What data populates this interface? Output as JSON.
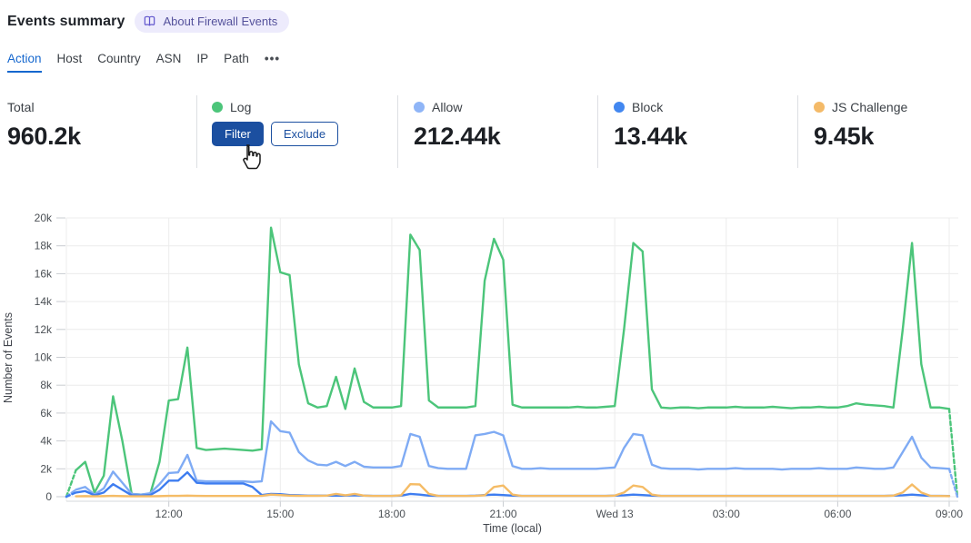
{
  "header": {
    "title": "Events summary",
    "about_badge": {
      "label": "About Firewall Events",
      "icon": "book-icon",
      "bg_color": "#edebfc",
      "text_color": "#55529c",
      "icon_color": "#6156cd"
    }
  },
  "tabs": {
    "items": [
      "Action",
      "Host",
      "Country",
      "ASN",
      "IP",
      "Path"
    ],
    "active": "Action",
    "more": "•••",
    "more_icon": "ellipsis-icon",
    "active_color": "#1567ce"
  },
  "stats": {
    "cards": [
      {
        "label": "Total",
        "value": "960.2k"
      },
      {
        "label": "Log",
        "dot_color": "#4cc57a",
        "hovered": true,
        "actions": {
          "filter": "Filter",
          "exclude": "Exclude"
        },
        "button_color": "#1b4fa0"
      },
      {
        "label": "Allow",
        "dot_color": "#8fb5f7",
        "value": "212.44k"
      },
      {
        "label": "Block",
        "dot_color": "#4287f0",
        "value": "13.44k"
      },
      {
        "label": "JS Challenge",
        "dot_color": "#f4ba68",
        "value": "9.45k"
      }
    ]
  },
  "cursor": {
    "icon": "hand-pointer-cursor"
  },
  "chart_data": {
    "type": "line",
    "title": "",
    "xlabel": "Time (local)",
    "ylabel": "Number of Events",
    "ylim": [
      0,
      20000
    ],
    "grid": true,
    "legend_position": "in stat cards above chart",
    "edge_style": "series enter and exit the window with dashed segments dropping to zero",
    "y_ticks": [
      0,
      2000,
      4000,
      6000,
      8000,
      10000,
      12000,
      14000,
      16000,
      18000,
      20000
    ],
    "y_tick_labels": [
      "0",
      "2k",
      "4k",
      "6k",
      "8k",
      "10k",
      "12k",
      "14k",
      "16k",
      "18k",
      "20k"
    ],
    "x_ticks": [
      {
        "index": 10,
        "label": "12:00"
      },
      {
        "index": 22,
        "label": "15:00"
      },
      {
        "index": 34,
        "label": "18:00"
      },
      {
        "index": 46,
        "label": "21:00"
      },
      {
        "index": 58,
        "label": "Wed 13"
      },
      {
        "index": 70,
        "label": "03:00"
      },
      {
        "index": 82,
        "label": "06:00"
      },
      {
        "index": 94,
        "label": "09:00"
      }
    ],
    "x": [
      "09:30",
      "09:45",
      "10:00",
      "10:15",
      "10:30",
      "10:45",
      "11:00",
      "11:15",
      "11:30",
      "11:45",
      "12:00",
      "12:15",
      "12:30",
      "12:45",
      "13:00",
      "13:15",
      "13:30",
      "13:45",
      "14:00",
      "14:15",
      "14:30",
      "14:45",
      "15:00",
      "15:15",
      "15:30",
      "15:45",
      "16:00",
      "16:15",
      "16:30",
      "16:45",
      "17:00",
      "17:15",
      "17:30",
      "17:45",
      "18:00",
      "18:15",
      "18:30",
      "18:45",
      "19:00",
      "19:15",
      "19:30",
      "19:45",
      "20:00",
      "20:15",
      "20:30",
      "20:45",
      "21:00",
      "21:15",
      "21:30",
      "21:45",
      "22:00",
      "22:15",
      "22:30",
      "22:45",
      "23:00",
      "23:15",
      "23:30",
      "23:45",
      "00:00",
      "00:15",
      "00:30",
      "00:45",
      "01:00",
      "01:15",
      "01:30",
      "01:45",
      "02:00",
      "02:15",
      "02:30",
      "02:45",
      "03:00",
      "03:15",
      "03:30",
      "03:45",
      "04:00",
      "04:15",
      "04:30",
      "04:45",
      "05:00",
      "05:15",
      "05:30",
      "05:45",
      "06:00",
      "06:15",
      "06:30",
      "06:45",
      "07:00",
      "07:15",
      "07:30",
      "07:45",
      "08:00",
      "08:15",
      "08:30",
      "08:45",
      "09:00"
    ],
    "series": [
      {
        "name": "Log",
        "color": "#4cc57a",
        "edge_dash": {
          "lead": true,
          "tail": true
        },
        "values": [
          1900,
          2500,
          300,
          1500,
          7200,
          4000,
          200,
          150,
          200,
          2500,
          6900,
          7000,
          10700,
          3500,
          3350,
          3400,
          3450,
          3400,
          3350,
          3300,
          3400,
          19300,
          16100,
          15900,
          9500,
          6700,
          6400,
          6500,
          8600,
          6300,
          9200,
          6800,
          6400,
          6400,
          6400,
          6500,
          18800,
          17700,
          6900,
          6400,
          6400,
          6400,
          6400,
          6500,
          15500,
          18500,
          17000,
          6600,
          6400,
          6400,
          6400,
          6400,
          6400,
          6400,
          6450,
          6400,
          6400,
          6450,
          6500,
          12000,
          18200,
          17600,
          7700,
          6400,
          6350,
          6400,
          6400,
          6350,
          6400,
          6400,
          6400,
          6450,
          6400,
          6400,
          6400,
          6450,
          6400,
          6350,
          6400,
          6400,
          6450,
          6400,
          6400,
          6500,
          6700,
          6600,
          6550,
          6500,
          6400,
          12000,
          18200,
          9500,
          6400,
          6400,
          6300
        ]
      },
      {
        "name": "Allow",
        "color": "#7fabf4",
        "edge_dash": {
          "lead": true,
          "tail": true
        },
        "values": [
          500,
          700,
          150,
          600,
          1800,
          1000,
          200,
          150,
          250,
          900,
          1700,
          1750,
          3000,
          1150,
          1100,
          1100,
          1100,
          1100,
          1100,
          1050,
          1100,
          5400,
          4700,
          4600,
          3200,
          2600,
          2300,
          2250,
          2500,
          2200,
          2500,
          2150,
          2100,
          2100,
          2100,
          2200,
          4500,
          4300,
          2200,
          2050,
          2000,
          2000,
          2000,
          4400,
          4500,
          4650,
          4400,
          2200,
          2000,
          2000,
          2050,
          2000,
          2000,
          2000,
          2000,
          2000,
          2000,
          2050,
          2100,
          3500,
          4500,
          4400,
          2300,
          2050,
          2000,
          2000,
          2000,
          1950,
          2000,
          2000,
          2000,
          2050,
          2000,
          2000,
          2000,
          2000,
          1950,
          2000,
          2000,
          2000,
          2050,
          2000,
          2000,
          2000,
          2100,
          2050,
          2000,
          2000,
          2100,
          3200,
          4300,
          2800,
          2100,
          2050,
          2000
        ]
      },
      {
        "name": "Block",
        "color": "#3e7df0",
        "edge_dash": {
          "lead": true,
          "tail": false
        },
        "values": [
          300,
          400,
          100,
          300,
          900,
          500,
          100,
          80,
          120,
          500,
          1150,
          1150,
          1750,
          1000,
          950,
          950,
          950,
          950,
          950,
          700,
          120,
          200,
          180,
          120,
          100,
          80,
          80,
          80,
          80,
          80,
          100,
          80,
          60,
          60,
          60,
          80,
          200,
          150,
          80,
          60,
          60,
          60,
          60,
          80,
          120,
          150,
          120,
          80,
          60,
          60,
          60,
          60,
          60,
          60,
          60,
          60,
          60,
          60,
          80,
          100,
          150,
          120,
          80,
          60,
          60,
          60,
          60,
          60,
          60,
          60,
          60,
          60,
          60,
          60,
          60,
          60,
          60,
          60,
          60,
          60,
          60,
          60,
          60,
          60,
          60,
          60,
          60,
          60,
          80,
          100,
          150,
          100,
          60,
          60,
          50
        ]
      },
      {
        "name": "JS Challenge",
        "color": "#f5bc66",
        "edge_dash": {
          "lead": false,
          "tail": false
        },
        "values": [
          30,
          40,
          30,
          40,
          60,
          40,
          30,
          30,
          30,
          40,
          60,
          60,
          80,
          60,
          50,
          50,
          50,
          50,
          50,
          50,
          60,
          150,
          120,
          80,
          60,
          60,
          60,
          80,
          200,
          100,
          200,
          80,
          50,
          50,
          50,
          100,
          900,
          880,
          200,
          60,
          50,
          50,
          50,
          60,
          100,
          700,
          800,
          150,
          50,
          50,
          50,
          50,
          50,
          50,
          50,
          50,
          50,
          50,
          80,
          300,
          800,
          700,
          150,
          50,
          50,
          50,
          50,
          50,
          50,
          50,
          50,
          50,
          50,
          50,
          50,
          50,
          50,
          50,
          50,
          50,
          50,
          50,
          50,
          50,
          50,
          50,
          50,
          50,
          80,
          300,
          880,
          300,
          60,
          50,
          40
        ]
      }
    ]
  }
}
